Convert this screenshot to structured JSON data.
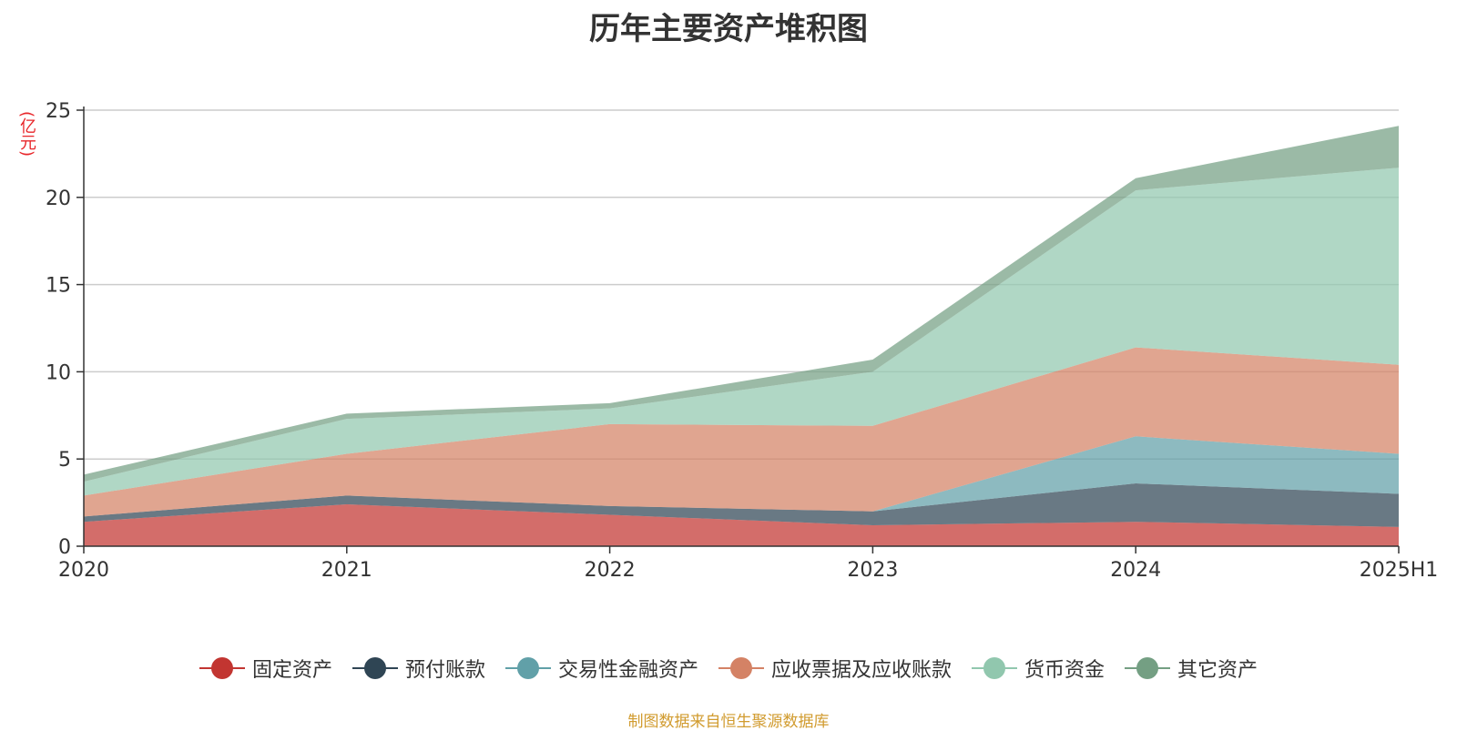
{
  "header": {
    "title": "历年主要资产堆积图"
  },
  "unit_label": "(亿元)",
  "source_note": "制图数据来自恒生聚源数据库",
  "chart_data": {
    "type": "area",
    "stacked": true,
    "title": "历年主要资产堆积图",
    "ylabel": "(亿元)",
    "categories": [
      "2020",
      "2021",
      "2022",
      "2023",
      "2024",
      "2025H1"
    ],
    "ylim": [
      0,
      25
    ],
    "yticks": [
      0,
      5,
      10,
      15,
      20,
      25
    ],
    "grid": true,
    "legend_position": "bottom",
    "series": [
      {
        "name": "固定资产",
        "color": "#c23531",
        "values": [
          1.4,
          2.4,
          1.8,
          1.2,
          1.4,
          1.1
        ]
      },
      {
        "name": "预付账款",
        "color": "#2f4554",
        "values": [
          0.3,
          0.5,
          0.5,
          0.8,
          2.2,
          1.9
        ]
      },
      {
        "name": "交易性金融资产",
        "color": "#61a0a8",
        "values": [
          0.0,
          0.0,
          0.0,
          0.0,
          2.7,
          2.3
        ]
      },
      {
        "name": "应收票据及应收账款",
        "color": "#d48265",
        "values": [
          1.2,
          2.4,
          4.7,
          4.9,
          5.1,
          5.1
        ]
      },
      {
        "name": "货币资金",
        "color": "#91c7ae",
        "values": [
          0.8,
          2.0,
          0.9,
          3.1,
          9.0,
          11.3
        ]
      },
      {
        "name": "其它资产",
        "color": "#749f83",
        "values": [
          0.4,
          0.3,
          0.3,
          0.7,
          0.7,
          2.4
        ]
      }
    ]
  }
}
